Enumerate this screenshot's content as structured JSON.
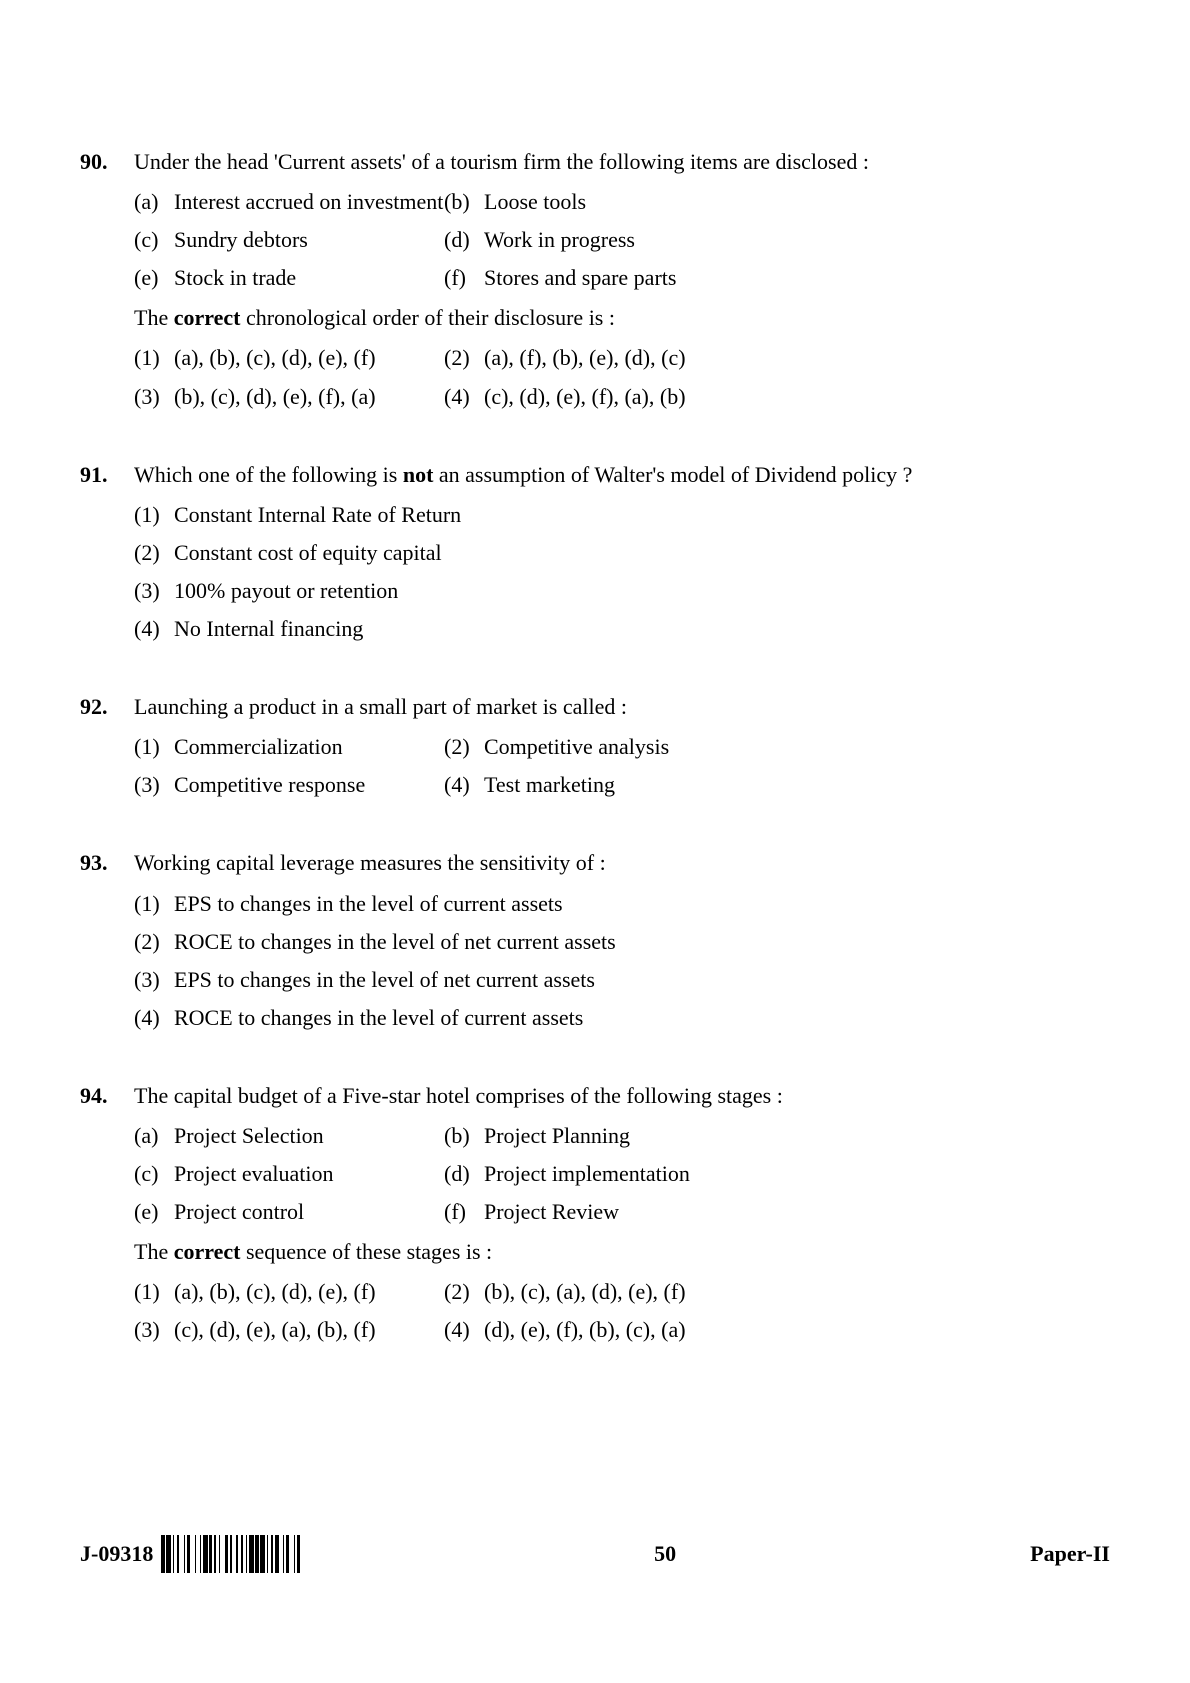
{
  "footer": {
    "code": "J-09318",
    "page_num": "50",
    "paper": "Paper-II"
  },
  "questions": [
    {
      "num": "90.",
      "stem": "Under the head 'Current assets' of a tourism firm the following items are disclosed :",
      "items": [
        {
          "l": "(a)",
          "t": "Interest accrued on investment"
        },
        {
          "l": "(b)",
          "t": "Loose tools"
        },
        {
          "l": "(c)",
          "t": "Sundry debtors"
        },
        {
          "l": "(d)",
          "t": "Work in progress"
        },
        {
          "l": "(e)",
          "t": "Stock in trade"
        },
        {
          "l": "(f)",
          "t": "Stores and spare parts"
        }
      ],
      "followup_pre": "The ",
      "followup_bold": "correct",
      "followup_post": " chronological order of their disclosure is :",
      "options": [
        {
          "l": "(1)",
          "t": "(a), (b), (c), (d), (e), (f)"
        },
        {
          "l": "(2)",
          "t": "(a), (f), (b), (e), (d), (c)"
        },
        {
          "l": "(3)",
          "t": "(b), (c), (d), (e), (f), (a)"
        },
        {
          "l": "(4)",
          "t": "(c), (d), (e), (f), (a), (b)"
        }
      ],
      "layout": "grid"
    },
    {
      "num": "91.",
      "stem_pre": "Which one of the following is ",
      "stem_bold": "not",
      "stem_post": " an assumption of Walter's model of Dividend policy ?",
      "options": [
        {
          "l": "(1)",
          "t": "Constant Internal Rate of Return"
        },
        {
          "l": "(2)",
          "t": "Constant cost of equity capital"
        },
        {
          "l": "(3)",
          "t": "100% payout or retention"
        },
        {
          "l": "(4)",
          "t": "No Internal financing"
        }
      ],
      "layout": "list"
    },
    {
      "num": "92.",
      "stem": "Launching a product in a small part of market is called :",
      "options": [
        {
          "l": "(1)",
          "t": "Commercialization"
        },
        {
          "l": "(2)",
          "t": "Competitive analysis"
        },
        {
          "l": "(3)",
          "t": "Competitive response"
        },
        {
          "l": "(4)",
          "t": "Test marketing"
        }
      ],
      "layout": "grid"
    },
    {
      "num": "93.",
      "stem": "Working capital leverage measures the sensitivity of :",
      "options": [
        {
          "l": "(1)",
          "t": "EPS to changes in the level of current assets"
        },
        {
          "l": "(2)",
          "t": "ROCE to changes in the level of net current assets"
        },
        {
          "l": "(3)",
          "t": "EPS to changes in the level of net current assets"
        },
        {
          "l": "(4)",
          "t": "ROCE to changes in the level of current assets"
        }
      ],
      "layout": "list"
    },
    {
      "num": "94.",
      "stem": "The capital budget of a Five-star hotel comprises of the following stages :",
      "items": [
        {
          "l": "(a)",
          "t": "Project Selection"
        },
        {
          "l": "(b)",
          "t": "Project Planning"
        },
        {
          "l": "(c)",
          "t": "Project evaluation"
        },
        {
          "l": "(d)",
          "t": "Project implementation"
        },
        {
          "l": "(e)",
          "t": "Project control"
        },
        {
          "l": "(f)",
          "t": "Project Review"
        }
      ],
      "followup_pre": "The ",
      "followup_bold": "correct",
      "followup_post": " sequence of these stages is :",
      "options": [
        {
          "l": "(1)",
          "t": "(a), (b), (c), (d), (e), (f)"
        },
        {
          "l": "(2)",
          "t": "(b), (c), (a), (d), (e), (f)"
        },
        {
          "l": "(3)",
          "t": "(c), (d), (e), (a), (b), (f)"
        },
        {
          "l": "(4)",
          "t": "(d), (e), (f), (b), (c), (a)"
        }
      ],
      "layout": "grid"
    }
  ],
  "barcode_widths": [
    2,
    1,
    3,
    1,
    1,
    2,
    1,
    3,
    1,
    1,
    2,
    3,
    1,
    2,
    1,
    1,
    3,
    1,
    2,
    1,
    1,
    2,
    1,
    3,
    2,
    1,
    1,
    3,
    1,
    2,
    1,
    2,
    1,
    1,
    3,
    1,
    2,
    1,
    3,
    1,
    1,
    2,
    1,
    1,
    3,
    2,
    1,
    1,
    2,
    3,
    1,
    1,
    2
  ]
}
